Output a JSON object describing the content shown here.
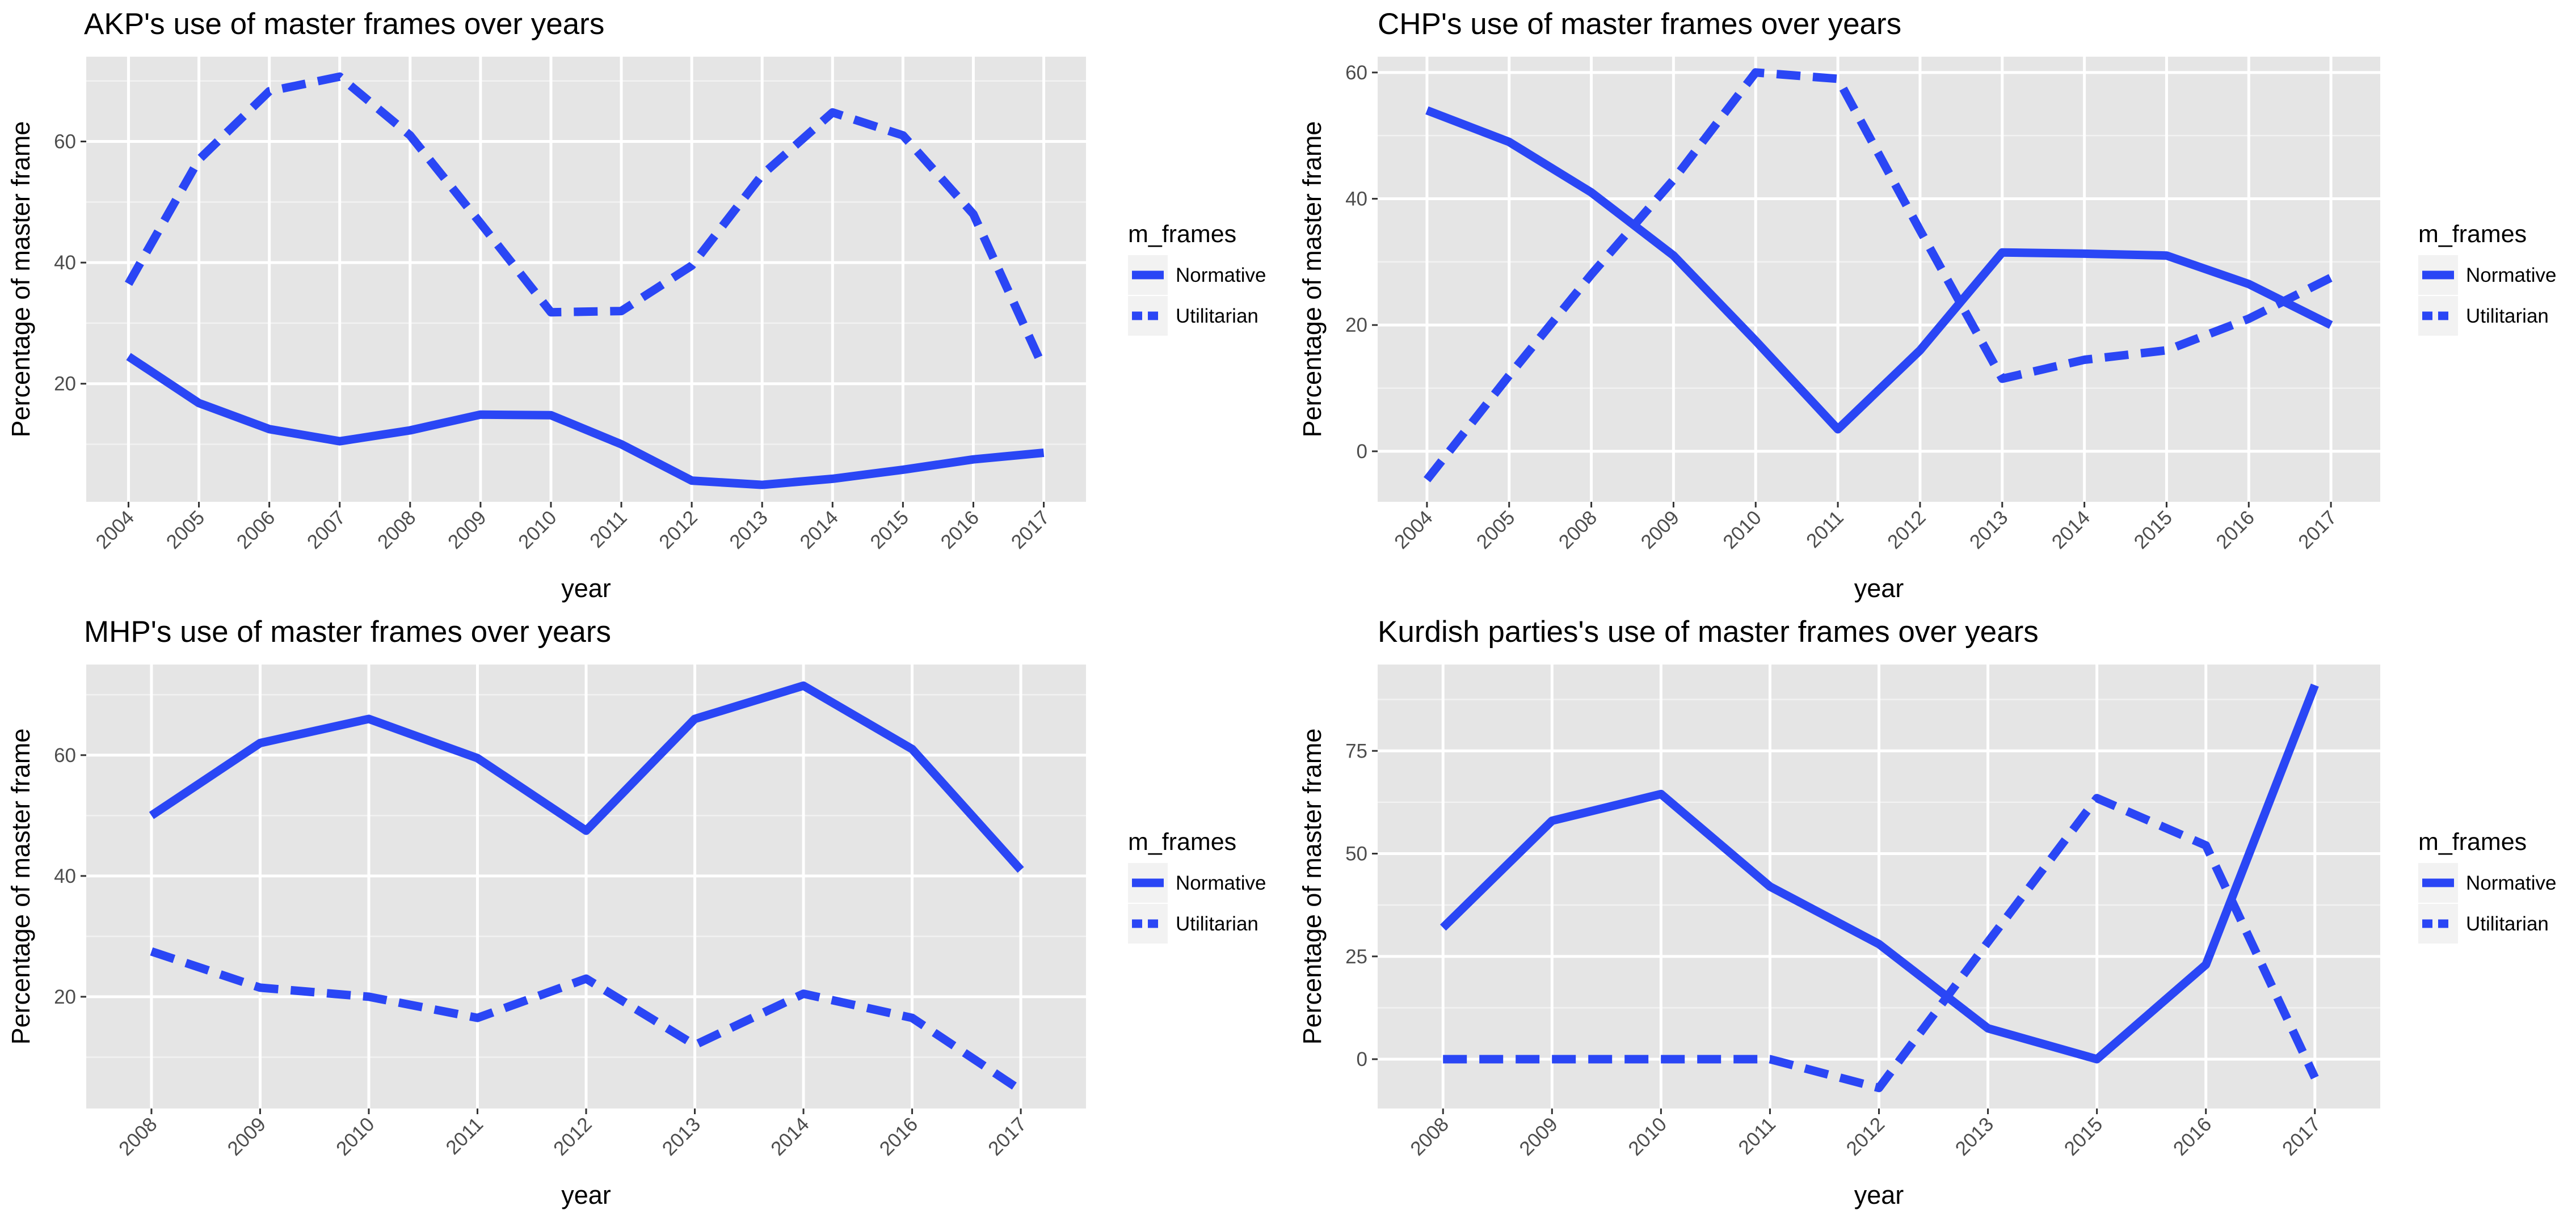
{
  "colors": {
    "series": "#2a46f5",
    "panel_bg": "#e5e5e5",
    "grid_major": "#ffffff",
    "grid_minor": "#f2f2f2",
    "tick_text": "#4d4d4d",
    "legend_key_bg": "#f2f2f2"
  },
  "chart_data": [
    {
      "type": "line",
      "title": "AKP's use of master frames over years",
      "xlabel": "year",
      "ylabel": "Percentage of master frame",
      "legend_title": "m_frames",
      "legend_position": "right",
      "grid": true,
      "categories": [
        "2004",
        "2005",
        "2006",
        "2007",
        "2008",
        "2009",
        "2010",
        "2011",
        "2012",
        "2013",
        "2014",
        "2015",
        "2016",
        "2017"
      ],
      "yticks": [
        20,
        40,
        60
      ],
      "ylim": [
        0.5,
        74
      ],
      "series": [
        {
          "name": "Normative",
          "linetype": "solid",
          "values": [
            24.5,
            16.8,
            12.5,
            10.5,
            12.3,
            14.9,
            14.8,
            10.0,
            4.0,
            3.3,
            4.3,
            5.8,
            7.5,
            8.6
          ]
        },
        {
          "name": "Utilitarian",
          "linetype": "dashed",
          "values": [
            36.5,
            57.0,
            68.3,
            70.7,
            61.0,
            46.5,
            31.8,
            32.0,
            39.5,
            54.5,
            64.8,
            61.0,
            48.0,
            22.5
          ]
        }
      ]
    },
    {
      "type": "line",
      "title": "CHP's use of master frames over years",
      "xlabel": "year",
      "ylabel": "Percentage of master frame",
      "legend_title": "m_frames",
      "legend_position": "right",
      "grid": true,
      "categories": [
        "2004",
        "2005",
        "2008",
        "2009",
        "2010",
        "2011",
        "2012",
        "2013",
        "2014",
        "2015",
        "2016",
        "2017"
      ],
      "yticks": [
        0,
        20,
        40,
        60
      ],
      "ylim": [
        -8,
        62.5
      ],
      "series": [
        {
          "name": "Normative",
          "linetype": "solid",
          "values": [
            54.0,
            49.0,
            41.0,
            31.0,
            17.5,
            3.5,
            16.0,
            31.5,
            31.3,
            31.0,
            26.5,
            20.0
          ]
        },
        {
          "name": "Utilitarian",
          "linetype": "dashed",
          "values": [
            -4.5,
            12.0,
            28.0,
            43.0,
            60.0,
            59.0,
            35.0,
            11.5,
            14.5,
            16.0,
            21.0,
            27.5
          ]
        }
      ]
    },
    {
      "type": "line",
      "title": "MHP's use of master frames over years",
      "xlabel": "year",
      "ylabel": "Percentage of master frame",
      "legend_title": "m_frames",
      "legend_position": "right",
      "grid": true,
      "categories": [
        "2008",
        "2009",
        "2010",
        "2011",
        "2012",
        "2013",
        "2014",
        "2016",
        "2017"
      ],
      "yticks": [
        20,
        40,
        60
      ],
      "ylim": [
        1.5,
        75
      ],
      "series": [
        {
          "name": "Normative",
          "linetype": "solid",
          "values": [
            50.0,
            62.0,
            66.0,
            59.5,
            47.5,
            66.0,
            71.5,
            61.0,
            41.0
          ]
        },
        {
          "name": "Utilitarian",
          "linetype": "dashed",
          "values": [
            27.5,
            21.5,
            20.0,
            16.5,
            23.0,
            12.0,
            20.5,
            16.5,
            4.5
          ]
        }
      ]
    },
    {
      "type": "line",
      "title": "Kurdish parties's use of master frames over years",
      "xlabel": "year",
      "ylabel": "Percentage of master frame",
      "legend_title": "m_frames",
      "legend_position": "right",
      "grid": true,
      "categories": [
        "2008",
        "2009",
        "2010",
        "2011",
        "2012",
        "2013",
        "2015",
        "2016",
        "2017"
      ],
      "yticks": [
        0,
        25,
        50,
        75
      ],
      "ylim": [
        -12,
        96
      ],
      "series": [
        {
          "name": "Normative",
          "linetype": "solid",
          "values": [
            32.0,
            58.0,
            64.5,
            42.0,
            28.0,
            7.5,
            0.0,
            23.0,
            91.0
          ]
        },
        {
          "name": "Utilitarian",
          "linetype": "dashed",
          "values": [
            0.0,
            0.0,
            0.0,
            0.0,
            -7.0,
            28.5,
            63.5,
            52.0,
            -4.5
          ]
        }
      ]
    }
  ]
}
